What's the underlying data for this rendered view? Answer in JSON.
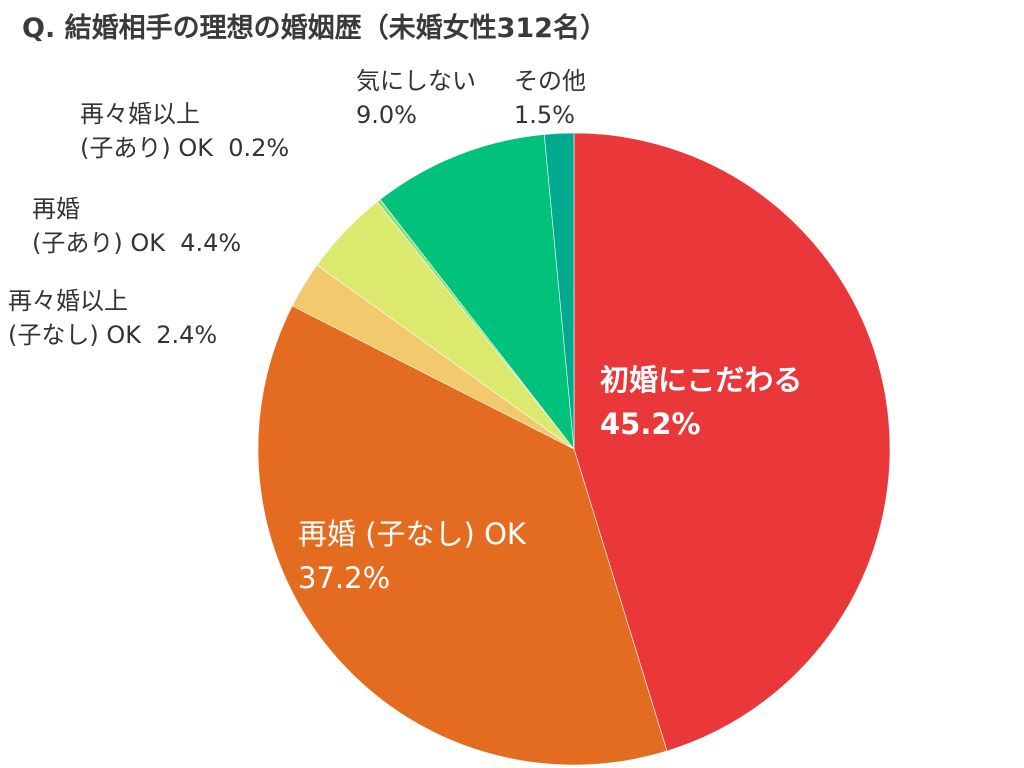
{
  "chart_data": {
    "type": "pie",
    "title": "Q. 結婚相手の理想の婚姻歴（未婚女性312名）",
    "start": "top",
    "direction": "clockwise",
    "slices": [
      {
        "label": "初婚にこだわる",
        "value": 45.2,
        "value_label": "45.2%",
        "color": "#ea383a"
      },
      {
        "label": "再婚 (子なし) OK",
        "value": 37.2,
        "value_label": "37.2%",
        "color": "#e36c21"
      },
      {
        "label": "再々婚以上 (子なし) OK",
        "value": 2.4,
        "value_label": "2.4%",
        "color": "#f2c96c"
      },
      {
        "label": "再婚 (子あり) OK",
        "value": 4.4,
        "value_label": "4.4%",
        "color": "#dbe96e"
      },
      {
        "label": "再々婚以上 (子あり) OK",
        "value": 0.2,
        "value_label": "0.2%",
        "color": "#8ee070"
      },
      {
        "label": "気にしない",
        "value": 9.0,
        "value_label": "9.0%",
        "color": "#00c27b"
      },
      {
        "label": "その他",
        "value": 1.5,
        "value_label": "1.5%",
        "color": "#00a98f"
      }
    ]
  }
}
